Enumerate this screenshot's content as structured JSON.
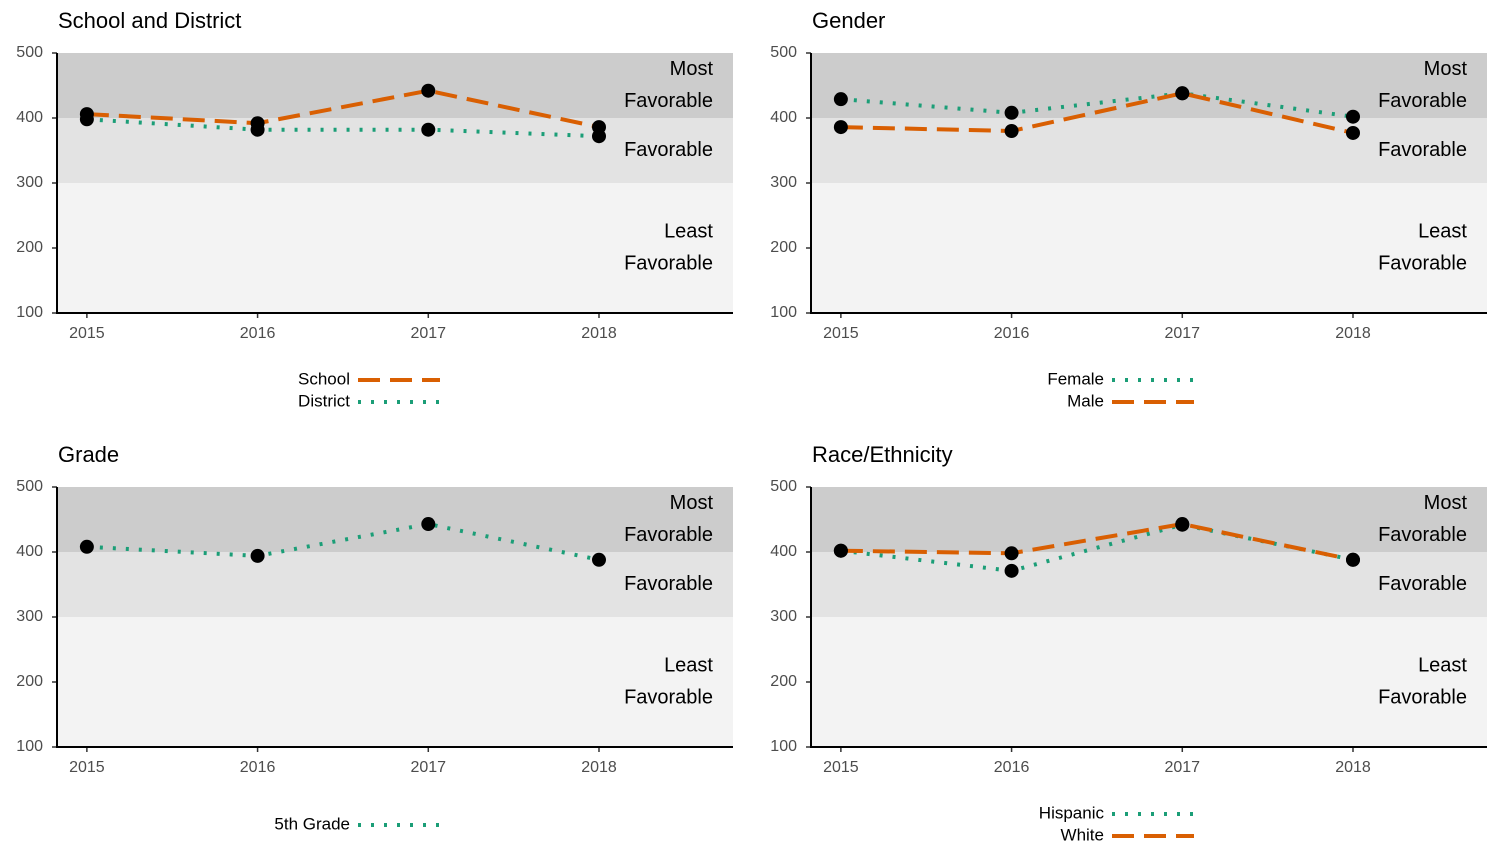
{
  "chart_data": [
    {
      "type": "line",
      "title": "School and District",
      "x": [
        2015,
        2016,
        2017,
        2018
      ],
      "xlim": [
        2014.825,
        2018.785
      ],
      "xticks": [
        2015,
        2016,
        2017,
        2018
      ],
      "ylim": [
        100,
        500
      ],
      "yticks": [
        100,
        200,
        300,
        400,
        500
      ],
      "bands": [
        {
          "from": 400,
          "to": 500,
          "color": "#cccccc",
          "label": [
            "Most",
            "Favorable"
          ]
        },
        {
          "from": 300,
          "to": 400,
          "color": "#e3e3e3",
          "label": [
            "Favorable"
          ]
        },
        {
          "from": 100,
          "to": 300,
          "color": "#f3f3f3",
          "label": [
            "Least",
            "Favorable"
          ]
        }
      ],
      "series": [
        {
          "name": "School",
          "color": "#d95f02",
          "dash": "long",
          "values": [
            406,
            392,
            442,
            386
          ]
        },
        {
          "name": "District",
          "color": "#1b9e77",
          "dash": "dotted",
          "values": [
            398,
            382,
            382,
            372
          ]
        }
      ]
    },
    {
      "type": "line",
      "title": "Gender",
      "x": [
        2015,
        2016,
        2017,
        2018
      ],
      "xlim": [
        2014.825,
        2018.785
      ],
      "xticks": [
        2015,
        2016,
        2017,
        2018
      ],
      "ylim": [
        100,
        500
      ],
      "yticks": [
        100,
        200,
        300,
        400,
        500
      ],
      "bands": [
        {
          "from": 400,
          "to": 500,
          "color": "#cccccc",
          "label": [
            "Most",
            "Favorable"
          ]
        },
        {
          "from": 300,
          "to": 400,
          "color": "#e3e3e3",
          "label": [
            "Favorable"
          ]
        },
        {
          "from": 100,
          "to": 300,
          "color": "#f3f3f3",
          "label": [
            "Least",
            "Favorable"
          ]
        }
      ],
      "series": [
        {
          "name": "Female",
          "color": "#1b9e77",
          "dash": "dotted",
          "values": [
            429,
            408,
            438,
            402
          ]
        },
        {
          "name": "Male",
          "color": "#d95f02",
          "dash": "long",
          "values": [
            386,
            380,
            438,
            377
          ]
        }
      ]
    },
    {
      "type": "line",
      "title": "Grade",
      "x": [
        2015,
        2016,
        2017,
        2018
      ],
      "xlim": [
        2014.825,
        2018.785
      ],
      "xticks": [
        2015,
        2016,
        2017,
        2018
      ],
      "ylim": [
        100,
        500
      ],
      "yticks": [
        100,
        200,
        300,
        400,
        500
      ],
      "bands": [
        {
          "from": 400,
          "to": 500,
          "color": "#cccccc",
          "label": [
            "Most",
            "Favorable"
          ]
        },
        {
          "from": 300,
          "to": 400,
          "color": "#e3e3e3",
          "label": [
            "Favorable"
          ]
        },
        {
          "from": 100,
          "to": 300,
          "color": "#f3f3f3",
          "label": [
            "Least",
            "Favorable"
          ]
        }
      ],
      "series": [
        {
          "name": "5th Grade",
          "color": "#1b9e77",
          "dash": "dotted",
          "values": [
            408,
            394,
            443,
            388
          ]
        }
      ]
    },
    {
      "type": "line",
      "title": "Race/Ethnicity",
      "x": [
        2015,
        2016,
        2017,
        2018
      ],
      "xlim": [
        2014.825,
        2018.785
      ],
      "xticks": [
        2015,
        2016,
        2017,
        2018
      ],
      "ylim": [
        100,
        500
      ],
      "yticks": [
        100,
        200,
        300,
        400,
        500
      ],
      "bands": [
        {
          "from": 400,
          "to": 500,
          "color": "#cccccc",
          "label": [
            "Most",
            "Favorable"
          ]
        },
        {
          "from": 300,
          "to": 400,
          "color": "#e3e3e3",
          "label": [
            "Favorable"
          ]
        },
        {
          "from": 100,
          "to": 300,
          "color": "#f3f3f3",
          "label": [
            "Least",
            "Favorable"
          ]
        }
      ],
      "series": [
        {
          "name": "Hispanic",
          "color": "#1b9e77",
          "dash": "dotted",
          "values": [
            402,
            371,
            442,
            388
          ]
        },
        {
          "name": "White",
          "color": "#d95f02",
          "dash": "long",
          "values": [
            402,
            398,
            443,
            388
          ]
        }
      ]
    }
  ]
}
